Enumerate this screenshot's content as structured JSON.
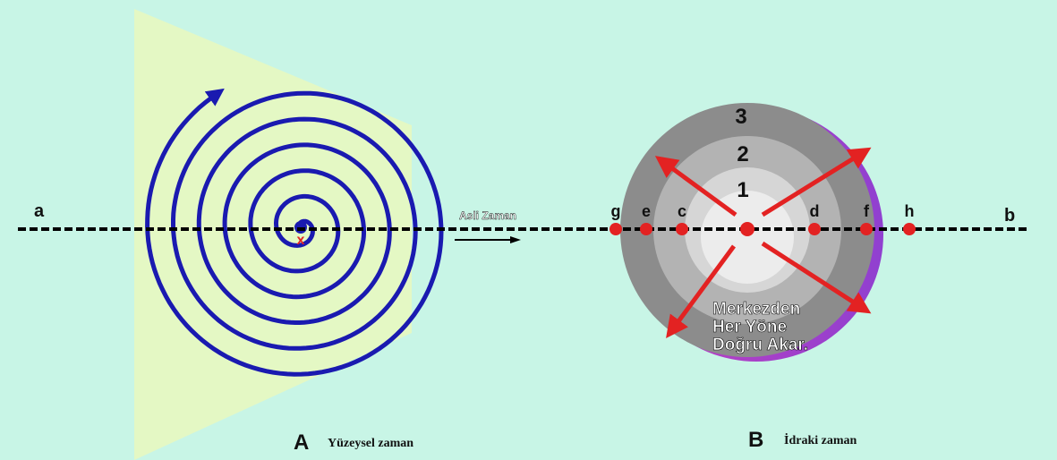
{
  "left": {
    "axis_start": "a",
    "center_mark": "x",
    "letter": "A",
    "caption": "Yüzeysel zaman"
  },
  "middle": {
    "label": "Asli Zaman"
  },
  "right": {
    "axis_end": "b",
    "rings": [
      "3",
      "2",
      "1"
    ],
    "points": [
      "g",
      "e",
      "c",
      "d",
      "f",
      "h"
    ],
    "note_lines": [
      "Merkezden",
      "Her Yöne",
      "Doğru Akar."
    ],
    "letter": "B",
    "caption": "İdraki zaman"
  }
}
